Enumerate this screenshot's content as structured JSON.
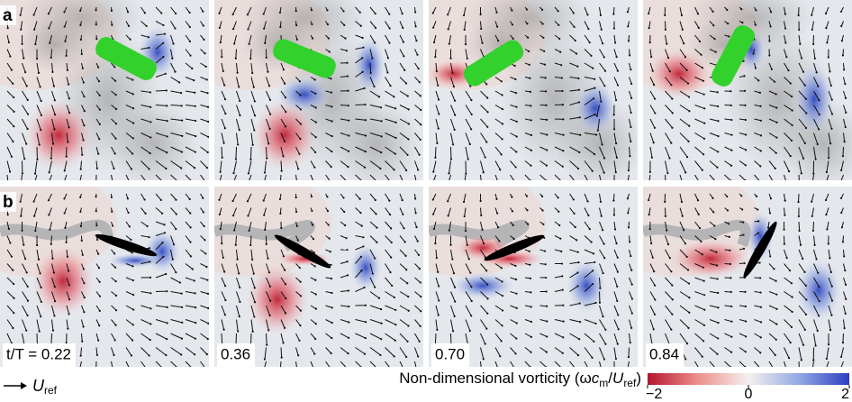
{
  "rows": [
    {
      "label": "a"
    },
    {
      "label": "b"
    }
  ],
  "time_labels": [
    "t/T = 0.22",
    "0.36",
    "0.70",
    "0.84"
  ],
  "reference_arrow": {
    "symbol": "U",
    "subscript": "ref"
  },
  "colorbar": {
    "label_parts": [
      "Non-dimensional vorticity (ω",
      "c",
      "m",
      "/",
      "U",
      "ref",
      ")"
    ],
    "range": [
      -2,
      2
    ],
    "ticks": [
      {
        "value": -2,
        "label": "−2"
      },
      0,
      2
    ]
  }
}
